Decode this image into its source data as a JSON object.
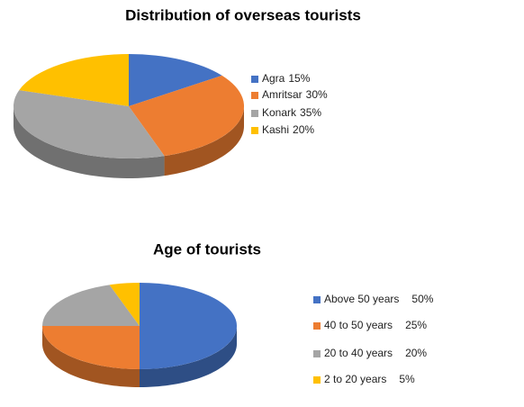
{
  "chart_data": [
    {
      "type": "pie",
      "title": "Distribution of overseas tourists",
      "categories": [
        "Agra",
        "Amritsar",
        "Konark",
        "Kashi"
      ],
      "values": [
        15,
        30,
        35,
        20
      ],
      "value_labels": [
        "15%",
        "30%",
        "35%",
        "20%"
      ],
      "colors": [
        "#4472c4",
        "#ed7d31",
        "#a5a5a5",
        "#ffc000"
      ]
    },
    {
      "type": "pie",
      "title": "Age of tourists",
      "categories": [
        "Above 50 years",
        "40 to 50 years",
        "20 to 40 years",
        "2 to 20 years"
      ],
      "values": [
        50,
        25,
        20,
        5
      ],
      "value_labels": [
        "50%",
        "25%",
        "20%",
        "5%"
      ],
      "colors": [
        "#4472c4",
        "#ed7d31",
        "#a5a5a5",
        "#ffc000"
      ]
    }
  ]
}
